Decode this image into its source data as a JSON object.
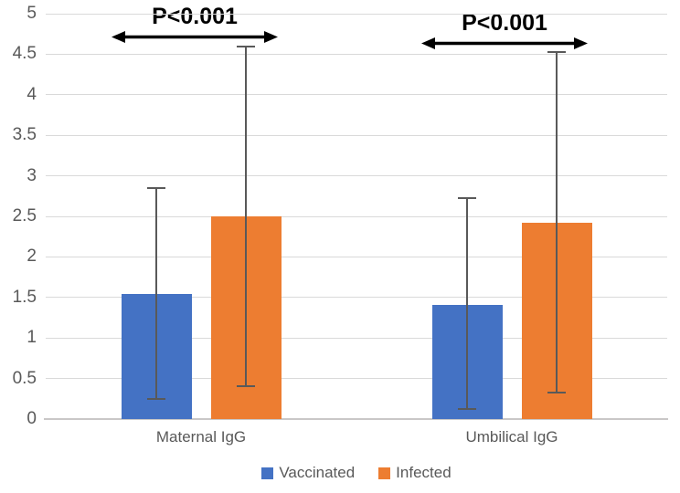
{
  "chart_data": {
    "type": "bar",
    "title": "",
    "xlabel": "",
    "ylabel": "",
    "categories": [
      "Maternal IgG",
      "Umbilical IgG"
    ],
    "series": [
      {
        "name": "Vaccinated",
        "color": "#4472C4",
        "values": [
          1.54,
          1.41
        ],
        "error_low": [
          0.25,
          0.12
        ],
        "error_high": [
          2.85,
          2.72
        ]
      },
      {
        "name": "Infected",
        "color": "#ED7D31",
        "values": [
          2.5,
          2.42
        ],
        "error_low": [
          0.4,
          0.33
        ],
        "error_high": [
          4.6,
          4.53
        ]
      }
    ],
    "ylim": [
      0,
      5
    ],
    "ytick_step": 0.5,
    "ytick_labels": [
      "0",
      "0.5",
      "1",
      "1.5",
      "2",
      "2.5",
      "3",
      "3.5",
      "4",
      "4.5",
      "5"
    ],
    "grid": true,
    "legend_position": "bottom",
    "annotations": [
      {
        "text": "P<0.001",
        "category": "Maternal IgG",
        "between": [
          "Vaccinated",
          "Infected"
        ]
      },
      {
        "text": "P<0.001",
        "category": "Umbilical IgG",
        "between": [
          "Vaccinated",
          "Infected"
        ]
      }
    ]
  },
  "colors": {
    "background": "#FFFFFF",
    "gridline": "#D9D9D9",
    "axis_line": "#C9C7C7",
    "error_bar": "#595959",
    "tick_text": "#595959",
    "annotation_text": "#000000"
  }
}
